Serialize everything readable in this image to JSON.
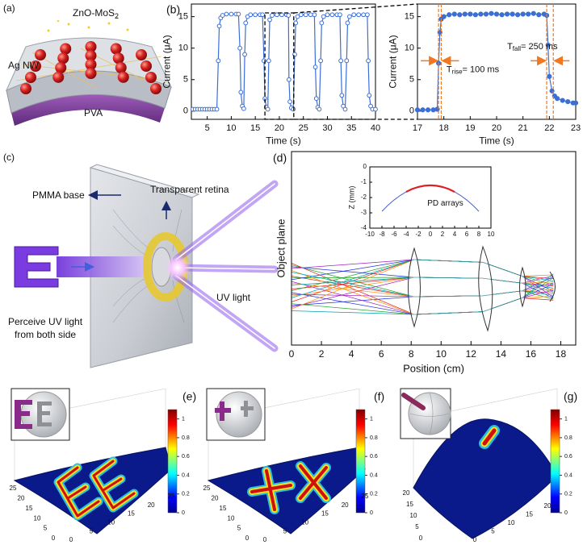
{
  "panels": {
    "a": {
      "label": "(a)",
      "material": {
        "text": "ZnO-MoS",
        "sub": "2"
      },
      "electrode": "Ag NW",
      "substrate": "PVA"
    },
    "c": {
      "label": "(c)",
      "base": "PMMA base",
      "retina": "Transparent retina",
      "light": "UV light",
      "note": [
        "Perceive UV light",
        "from both side"
      ]
    }
  },
  "chart_data": [
    {
      "type": "line",
      "label": "(b)",
      "xlabel": "Time (s)",
      "ylabel": "Current (μA)",
      "xlim": [
        1.7,
        40
      ],
      "ylim": [
        -1.3,
        17
      ],
      "xticks": [
        5,
        10,
        15,
        20,
        25,
        30,
        35,
        40
      ],
      "yticks": [
        0,
        5,
        10,
        15
      ],
      "x": [
        2,
        2.5,
        3,
        3.5,
        4,
        4.5,
        5,
        5.5,
        6,
        6.5,
        7,
        7.3,
        7.5,
        7.8,
        8.2,
        9,
        10,
        11,
        11.5,
        11.8,
        12.0,
        12.3,
        12.6,
        12.8,
        13.0,
        13.4,
        14,
        15,
        16,
        16.5,
        16.8,
        17.0,
        17.3,
        17.6,
        17.8,
        18.0,
        18.5,
        19.5,
        20.5,
        21.5,
        21.9,
        22.0,
        22.2,
        22.5,
        22.9,
        23.2,
        23.4,
        23.8,
        24.5,
        25.5,
        26.5,
        27.3,
        27.5,
        27.7,
        28.0,
        28.3,
        28.6,
        28.8,
        29.2,
        30,
        31,
        32,
        32.6,
        32.8,
        33.0,
        33.3,
        33.7,
        34.0,
        34.2,
        34.6,
        35.5,
        36.5,
        37.5,
        38.3,
        38.5,
        38.7,
        39.0,
        39.4,
        40
      ],
      "series": [
        {
          "color": "#3b6fd6",
          "values": [
            0.3,
            0.3,
            0.3,
            0.3,
            0.3,
            0.3,
            0.3,
            0.3,
            0.3,
            0.3,
            0.3,
            8,
            13.5,
            14.8,
            15.2,
            15.4,
            15.4,
            15.4,
            15.4,
            10,
            3,
            0.8,
            0.4,
            9,
            14,
            15,
            15.3,
            15.3,
            15.3,
            15.3,
            8,
            2,
            0.6,
            0.3,
            8,
            14.5,
            15.2,
            15.3,
            15.3,
            15.3,
            15.2,
            5,
            1.5,
            0.5,
            0.3,
            9,
            14,
            15,
            15.3,
            15.3,
            15.3,
            15.3,
            7,
            2,
            0.6,
            0.3,
            8,
            14,
            15,
            15.3,
            15.3,
            15.3,
            15.3,
            8,
            2.5,
            0.8,
            0.3,
            8,
            14,
            15,
            15.3,
            15.3,
            15.3,
            15.3,
            8,
            2.5,
            0.8,
            0.3,
            0.3
          ]
        }
      ]
    },
    {
      "type": "line",
      "xlabel": "Time (s)",
      "ylabel": "Current (μA)",
      "xlim": [
        17,
        23
      ],
      "ylim": [
        -1.3,
        17
      ],
      "xticks": [
        17,
        18,
        19,
        20,
        21,
        22,
        23
      ],
      "yticks": [
        0,
        5,
        10,
        15
      ],
      "x": [
        17.0,
        17.2,
        17.4,
        17.6,
        17.75,
        17.8,
        17.85,
        17.9,
        18.0,
        18.2,
        18.4,
        18.6,
        18.8,
        19.0,
        19.2,
        19.4,
        19.6,
        19.8,
        20.0,
        20.2,
        20.4,
        20.6,
        20.8,
        21.0,
        21.2,
        21.4,
        21.6,
        21.8,
        21.9,
        21.95,
        22.0,
        22.1,
        22.2,
        22.3,
        22.5,
        22.7,
        22.9,
        23.0
      ],
      "series": [
        {
          "color": "#3b6fd6",
          "values": [
            0.2,
            0.2,
            0.2,
            0.2,
            0.3,
            7.6,
            12.5,
            14.6,
            15.0,
            15.3,
            15.4,
            15.3,
            15.4,
            15.4,
            15.3,
            15.4,
            15.4,
            15.5,
            15.4,
            15.3,
            15.4,
            15.4,
            15.3,
            15.4,
            15.4,
            15.5,
            15.3,
            15.4,
            15.2,
            10.5,
            5.5,
            3.2,
            2.4,
            2.0,
            1.7,
            1.5,
            1.3,
            1.3
          ]
        }
      ],
      "vlines": {
        "color": "#f07820",
        "x": [
          17.8,
          17.9,
          21.9,
          22.15
        ]
      },
      "annotations": [
        {
          "text": "T",
          "sub": "fall",
          "after": "= 250 ms"
        },
        {
          "text": "T",
          "sub": "rise",
          "after": "= 100 ms"
        }
      ]
    },
    {
      "type": "optics",
      "label": "(d)",
      "xlabel": "Position (cm)",
      "ylabel": "Object plane",
      "xlim": [
        0,
        19
      ],
      "xticks": [
        0,
        2,
        4,
        6,
        8,
        10,
        12,
        14,
        16,
        18
      ]
    },
    {
      "type": "line",
      "ylabel": "Z (mm)",
      "annotation": "PD arrays",
      "xlim": [
        -10,
        10
      ],
      "ylim": [
        -4,
        0
      ],
      "xticks": [
        -10,
        -8,
        -6,
        -4,
        -2,
        0,
        2,
        4,
        6,
        8,
        10
      ],
      "yticks": [
        0,
        -1,
        -2,
        -3,
        -4
      ],
      "x": [
        -8,
        -7,
        -6,
        -5,
        -4,
        -3,
        -2,
        -1,
        0,
        1,
        2,
        3,
        4,
        5,
        6,
        7,
        8
      ],
      "series": [
        {
          "color": "#4a5fd0",
          "values": [
            -2.9,
            -2.5,
            -2.16,
            -1.87,
            -1.63,
            -1.44,
            -1.31,
            -1.23,
            -1.2,
            -1.23,
            -1.31,
            -1.44,
            -1.63,
            -1.87,
            -2.16,
            -2.5,
            -2.9
          ]
        },
        {
          "color": "#e02020",
          "values": [
            null,
            null,
            null,
            null,
            -1.63,
            -1.44,
            -1.31,
            -1.23,
            -1.2,
            -1.23,
            -1.31,
            -1.44,
            -1.63,
            null,
            null,
            null,
            null
          ]
        }
      ]
    },
    {
      "type": "surface",
      "label": "(e)",
      "clim": [
        0,
        1.1
      ],
      "cticks": [
        0,
        0.2,
        0.4,
        0.6,
        0.8,
        1
      ],
      "xlim": [
        0,
        25
      ],
      "xticks": [
        0,
        5,
        10,
        15,
        20,
        25
      ],
      "ylim": [
        0,
        25
      ],
      "yticks": [
        0,
        5,
        10,
        15,
        20,
        25
      ]
    },
    {
      "type": "surface",
      "label": "(f)",
      "clim": [
        0,
        1.1
      ],
      "cticks": [
        0,
        0.2,
        0.4,
        0.6,
        0.8,
        1
      ],
      "xlim": [
        0,
        25
      ],
      "xticks": [
        0,
        5,
        10,
        15,
        20,
        25
      ],
      "ylim": [
        0,
        25
      ],
      "yticks": [
        0,
        5,
        10,
        15,
        20,
        25
      ]
    },
    {
      "type": "surface",
      "label": "(g)",
      "clim": [
        0,
        1.1
      ],
      "cticks": [
        0,
        0.2,
        0.4,
        0.6,
        0.8,
        1
      ],
      "xlim": [
        0,
        20
      ],
      "xticks": [
        0,
        5,
        10,
        15,
        20
      ],
      "ylim": [
        0,
        20
      ],
      "yticks": [
        0,
        5,
        10,
        15,
        20
      ]
    }
  ]
}
